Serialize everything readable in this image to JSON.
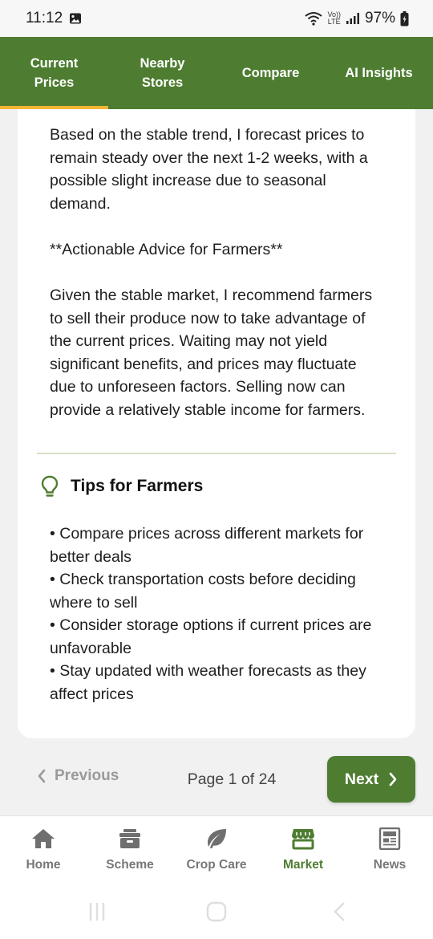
{
  "status": {
    "time": "11:12",
    "battery": "97%",
    "network_tag_top": "Vo))",
    "network_tag_bottom": "LTE"
  },
  "tabs": [
    {
      "label": "Current\nPrices",
      "active": true
    },
    {
      "label": "Nearby\nStores",
      "active": false
    },
    {
      "label": "Compare",
      "active": false
    },
    {
      "label": "AI Insights",
      "active": false
    }
  ],
  "content": {
    "forecast": "Based on the stable trend, I forecast prices to remain steady over the next 1-2 weeks, with a possible slight increase due to seasonal demand.",
    "advice_heading": "**Actionable Advice for Farmers**",
    "advice": "Given the stable market, I recommend farmers to sell their produce now to take advantage of the current prices. Waiting may not yield significant benefits, and prices may fluctuate due to unforeseen factors. Selling now can provide a relatively stable income for farmers."
  },
  "tips": {
    "title": "Tips for Farmers",
    "icon": "lightbulb-icon",
    "items": [
      "• Compare prices across different markets for better deals",
      "• Check transportation costs before deciding where to sell",
      "• Consider storage options if current prices are unfavorable",
      "• Stay updated with weather forecasts as they affect prices"
    ]
  },
  "pagination": {
    "previous_label": "Previous",
    "page_info": "Page 1 of 24",
    "next_label": "Next"
  },
  "bottom_nav": [
    {
      "label": "Home",
      "icon": "home-icon",
      "active": false
    },
    {
      "label": "Scheme",
      "icon": "scheme-icon",
      "active": false
    },
    {
      "label": "Crop Care",
      "icon": "leaf-icon",
      "active": false
    },
    {
      "label": "Market",
      "icon": "store-icon",
      "active": true
    },
    {
      "label": "News",
      "icon": "news-icon",
      "active": false
    }
  ],
  "colors": {
    "primary": "#4e7d31",
    "accent": "#f2b632",
    "inactive": "#777777"
  }
}
